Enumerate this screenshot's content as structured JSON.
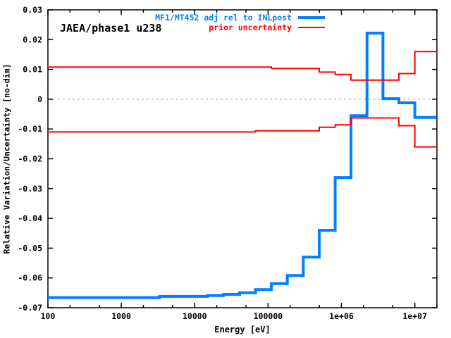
{
  "chart_data": {
    "type": "line",
    "subtype": "step-histogram",
    "inside_label": "JAEA/phase1 u238",
    "xlabel": "Energy [eV]",
    "ylabel": "Relative Variation/Uncertainty [no-dim]",
    "x_scale": "log",
    "xlim": [
      100,
      20000000
    ],
    "ylim": [
      -0.07,
      0.03
    ],
    "grid": "zero-line-only",
    "x_ticks": [
      {
        "value": 100,
        "label": "100"
      },
      {
        "value": 1000,
        "label": "1000"
      },
      {
        "value": 10000,
        "label": "10000"
      },
      {
        "value": 100000,
        "label": "100000"
      },
      {
        "value": 1000000,
        "label": "1e+06"
      },
      {
        "value": 10000000,
        "label": "1e+07"
      }
    ],
    "x_minor_ticks": [
      200,
      500,
      2000,
      5000,
      20000,
      50000,
      200000,
      500000,
      2000000,
      5000000,
      20000000
    ],
    "y_ticks": [
      {
        "value": 0.03,
        "label": "0.03"
      },
      {
        "value": 0.02,
        "label": "0.02"
      },
      {
        "value": 0.01,
        "label": "0.01"
      },
      {
        "value": 0,
        "label": "0"
      },
      {
        "value": -0.01,
        "label": "-0.01"
      },
      {
        "value": -0.02,
        "label": "-0.02"
      },
      {
        "value": -0.03,
        "label": "-0.03"
      },
      {
        "value": -0.04,
        "label": "-0.04"
      },
      {
        "value": -0.05,
        "label": "-0.05"
      },
      {
        "value": -0.06,
        "label": "-0.06"
      },
      {
        "value": -0.07,
        "label": "-0.07"
      }
    ],
    "zero_line": {
      "y": 0,
      "style": "dashed",
      "color": "#9e9e9e"
    },
    "series": [
      {
        "name": "MF1/MT452 adj rel to INLpost",
        "color": "#0080ff",
        "line_width": 4,
        "boundaries_eV": [
          100,
          3350,
          15000,
          24800,
          40900,
          67400,
          111000,
          183000,
          302000,
          498000,
          821000,
          1350000,
          2230000,
          3680000,
          6070000,
          10000000,
          19600000
        ],
        "values": [
          -0.0666,
          -0.0662,
          -0.0659,
          -0.0655,
          -0.065,
          -0.0639,
          -0.0619,
          -0.0592,
          -0.053,
          -0.044,
          -0.0263,
          -0.0055,
          0.0222,
          0.0002,
          -0.0012,
          -0.0061
        ]
      },
      {
        "name": "prior uncertainty (upper)",
        "color": "#ff0000",
        "line_width": 2,
        "boundaries_eV": [
          100,
          111000,
          498000,
          821000,
          1350000,
          6070000,
          10000000,
          19600000
        ],
        "values": [
          0.0108,
          0.0103,
          0.0091,
          0.0083,
          0.0064,
          0.0086,
          0.016
        ]
      },
      {
        "name": "prior uncertainty (lower)",
        "color": "#ff0000",
        "line_width": 2,
        "boundaries_eV": [
          100,
          67400,
          498000,
          821000,
          1350000,
          6070000,
          10000000,
          19600000
        ],
        "values": [
          -0.011,
          -0.0106,
          -0.0094,
          -0.0086,
          -0.0063,
          -0.0089,
          -0.016
        ]
      }
    ],
    "legend": {
      "position": "top-right-inside",
      "entries": [
        {
          "label": "MF1/MT452 adj rel to INLpost",
          "color": "#0080ff"
        },
        {
          "label": "prior uncertainty",
          "color": "#ff0000"
        }
      ]
    }
  }
}
